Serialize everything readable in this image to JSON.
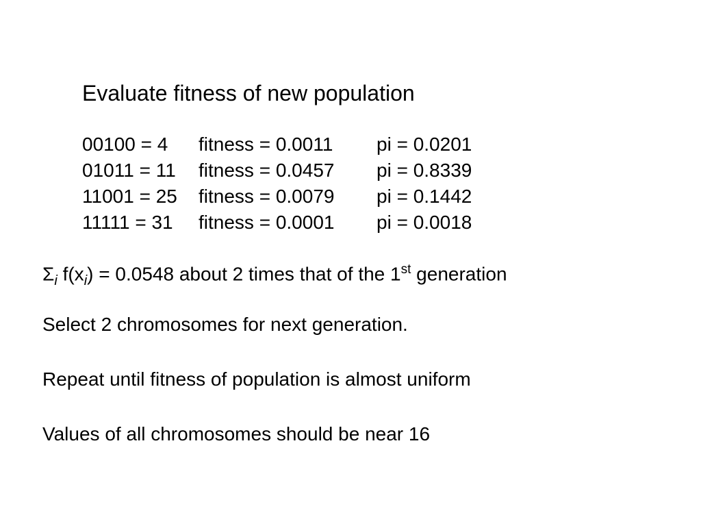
{
  "title": "Evaluate fitness of new population",
  "rows": [
    {
      "chrom": "00100 = 4",
      "fit": "fitness = 0.0011",
      "pi": "pi = 0.0201"
    },
    {
      "chrom": "01011 = 11",
      "fit": "fitness = 0.0457",
      "pi": "pi = 0.8339"
    },
    {
      "chrom": "11001 = 25",
      "fit": "fitness = 0.0079",
      "pi": "pi = 0.1442"
    },
    {
      "chrom": "11111 = 31",
      "fit": "fitness = 0.0001",
      "pi": "pi = 0.0018"
    }
  ],
  "sigma": {
    "symbol": "Σ",
    "sub": "i",
    "mid1": " f(x",
    "sub2": "i",
    "mid2": ") = 0.0548 about 2 times that of the 1",
    "sup": "st",
    "tail": " generation"
  },
  "lines": {
    "select": "Select 2 chromosomes for next generation.",
    "repeat": "Repeat until fitness of population is almost uniform",
    "values": "Values of all chromosomes should be near 16"
  },
  "style": {
    "background": "#ffffff",
    "text_color": "#000000",
    "title_fontsize": 32,
    "body_fontsize": 28,
    "font_family": "Arial"
  }
}
